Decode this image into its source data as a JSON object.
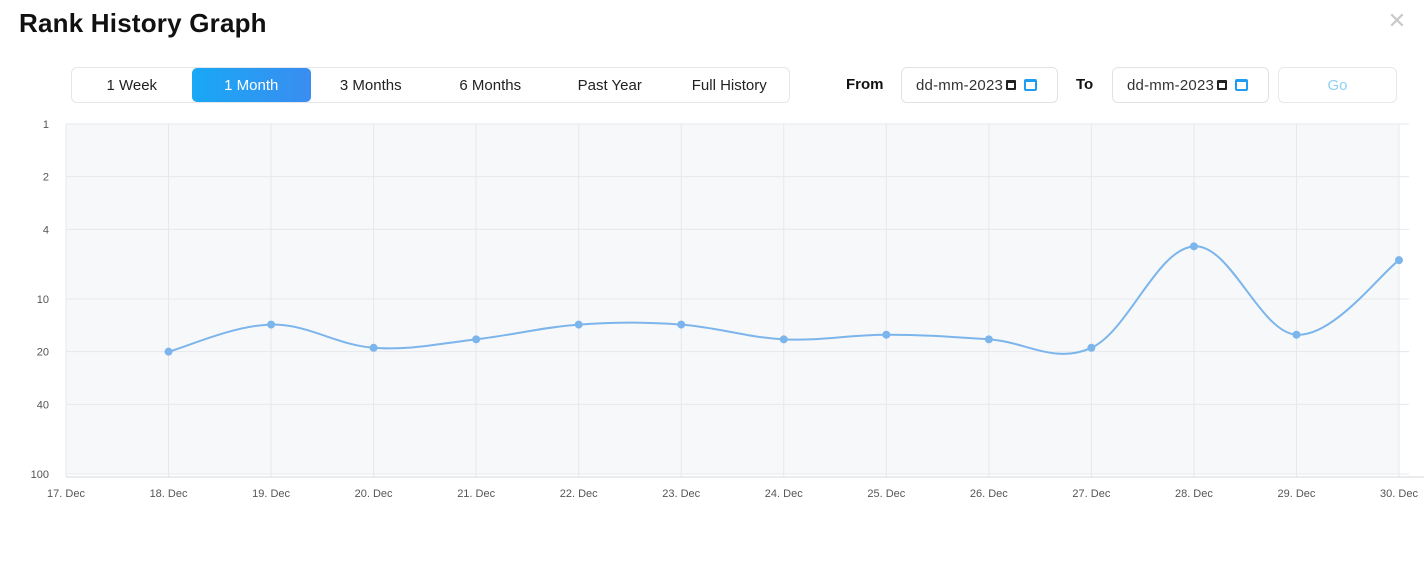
{
  "header": {
    "title": "Rank History Graph",
    "close_icon": "close-icon"
  },
  "ranges": [
    {
      "label": "1 Week",
      "active": false
    },
    {
      "label": "1 Month",
      "active": true
    },
    {
      "label": "3 Months",
      "active": false
    },
    {
      "label": "6 Months",
      "active": false
    },
    {
      "label": "Past Year",
      "active": false
    },
    {
      "label": "Full History",
      "active": false
    }
  ],
  "filters": {
    "from_label": "From",
    "from_value": "dd-mm-2023",
    "to_label": "To",
    "to_value": "dd-mm-2023",
    "go_label": "Go"
  },
  "colors": {
    "accent": "#1ea6f5",
    "line": "#7cb5ec",
    "plot_bg": "#f7f8f9"
  },
  "chart_data": {
    "type": "line",
    "categories": [
      "17. Dec",
      "18. Dec",
      "19. Dec",
      "20. Dec",
      "21. Dec",
      "22. Dec",
      "23. Dec",
      "24. Dec",
      "25. Dec",
      "26. Dec",
      "27. Dec",
      "28. Dec",
      "29. Dec",
      "30. Dec"
    ],
    "y_ticks": [
      1,
      2,
      4,
      10,
      20,
      40,
      100
    ],
    "y_scale": "log",
    "y_reversed": true,
    "ylim": [
      1,
      100
    ],
    "grid": true,
    "series": [
      {
        "values": [
          null,
          20,
          14,
          19,
          17,
          14,
          14,
          17,
          16,
          17,
          19,
          5,
          16,
          6
        ]
      }
    ]
  }
}
